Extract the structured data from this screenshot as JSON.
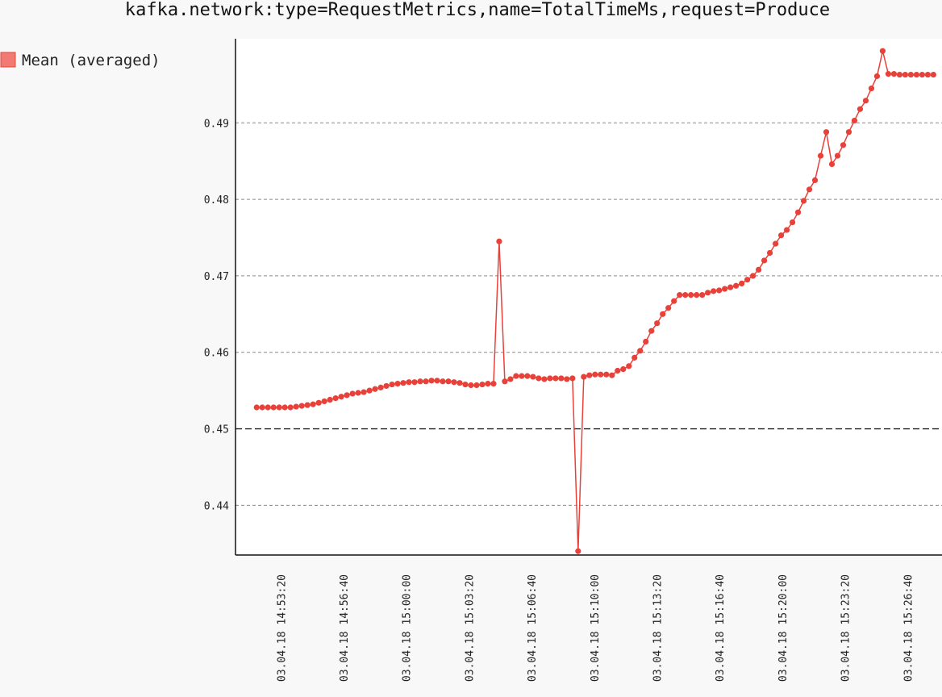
{
  "chart_data": {
    "type": "line",
    "title": "kafka.network:type=RequestMetrics,name=TotalTimeMs,request=Produce",
    "xlabel": "",
    "ylabel": "",
    "ylim": [
      0.4335,
      0.501
    ],
    "grid": true,
    "legend_placement": "top-left",
    "x_ticks": [
      "03.04.18 14:53:20",
      "03.04.18 14:56:40",
      "03.04.18 15:00:00",
      "03.04.18 15:03:20",
      "03.04.18 15:06:40",
      "03.04.18 15:10:00",
      "03.04.18 15:13:20",
      "03.04.18 15:16:40",
      "03.04.18 15:20:00",
      "03.04.18 15:23:20",
      "03.04.18 15:26:40"
    ],
    "y_ticks": [
      0.44,
      0.45,
      0.46,
      0.47,
      0.48,
      0.49
    ],
    "series": [
      {
        "name": "Mean (averaged)",
        "color": "#e8413a",
        "fill": "#f17a72",
        "x_start": "03.04.18 14:52:00",
        "x_step_seconds": 18,
        "values": [
          0.4528,
          0.4528,
          0.4528,
          0.4528,
          0.4528,
          0.4528,
          0.4528,
          0.4529,
          0.453,
          0.4531,
          0.4532,
          0.4534,
          0.4536,
          0.4538,
          0.454,
          0.4542,
          0.4544,
          0.4546,
          0.4547,
          0.4548,
          0.455,
          0.4552,
          0.4554,
          0.4556,
          0.4558,
          0.4559,
          0.456,
          0.4561,
          0.4561,
          0.4562,
          0.4562,
          0.4563,
          0.4563,
          0.4562,
          0.4562,
          0.4561,
          0.456,
          0.4558,
          0.4557,
          0.4557,
          0.4558,
          0.4559,
          0.4559,
          0.4745,
          0.4562,
          0.4565,
          0.4569,
          0.4569,
          0.4569,
          0.4568,
          0.4566,
          0.4565,
          0.4566,
          0.4566,
          0.4566,
          0.4565,
          0.4566,
          0.434,
          0.4568,
          0.457,
          0.4571,
          0.4571,
          0.4571,
          0.457,
          0.4576,
          0.4578,
          0.4582,
          0.4593,
          0.4602,
          0.4614,
          0.4628,
          0.4638,
          0.465,
          0.4658,
          0.4667,
          0.4675,
          0.4675,
          0.4675,
          0.4675,
          0.4675,
          0.4678,
          0.468,
          0.4681,
          0.4683,
          0.4685,
          0.4687,
          0.469,
          0.4695,
          0.47,
          0.4708,
          0.472,
          0.473,
          0.4742,
          0.4753,
          0.476,
          0.477,
          0.4783,
          0.4798,
          0.4813,
          0.4825,
          0.4857,
          0.4888,
          0.4846,
          0.4857,
          0.4871,
          0.4888,
          0.4903,
          0.4918,
          0.4929,
          0.4945,
          0.4961,
          0.4994,
          0.4964,
          0.4964,
          0.4963,
          0.4963,
          0.4963,
          0.4963,
          0.4963,
          0.4963,
          0.4963
        ]
      }
    ]
  }
}
